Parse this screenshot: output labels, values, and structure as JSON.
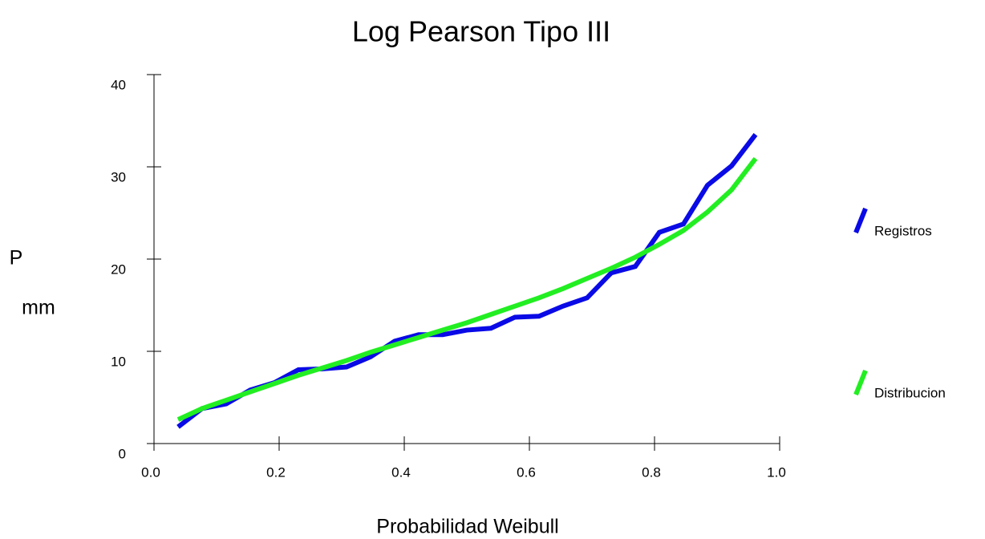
{
  "chart_data": {
    "type": "line",
    "title": "Log Pearson Tipo III",
    "xlabel": "Probabilidad Weibull",
    "ylabel": [
      "P",
      "mm"
    ],
    "x": [
      0.0385,
      0.0769,
      0.1154,
      0.1538,
      0.1923,
      0.2308,
      0.2692,
      0.3077,
      0.3462,
      0.3846,
      0.4231,
      0.4615,
      0.5,
      0.5385,
      0.5769,
      0.6154,
      0.6538,
      0.6923,
      0.7308,
      0.7692,
      0.8077,
      0.8462,
      0.8846,
      0.9231,
      0.9615
    ],
    "series": [
      {
        "name": "Registros",
        "color": "#0a0ae6",
        "values": [
          1.8,
          3.8,
          4.3,
          5.8,
          6.6,
          8.0,
          8.1,
          8.3,
          9.4,
          11.1,
          11.8,
          11.8,
          12.3,
          12.5,
          13.7,
          13.8,
          14.9,
          15.8,
          18.5,
          19.2,
          22.9,
          23.8,
          28.0,
          30.1,
          33.5
        ]
      },
      {
        "name": "Distribucion",
        "color": "#22ee22",
        "values": [
          2.6,
          3.8,
          4.7,
          5.6,
          6.5,
          7.4,
          8.2,
          9.0,
          9.9,
          10.7,
          11.5,
          12.3,
          13.1,
          14.0,
          14.9,
          15.8,
          16.8,
          17.9,
          19.0,
          20.2,
          21.6,
          23.1,
          25.1,
          27.5,
          30.9
        ]
      }
    ],
    "xlim": [
      0,
      1
    ],
    "xticks": [
      {
        "value": 0,
        "label": "0.0"
      },
      0.2,
      0.4,
      0.6,
      0.8,
      {
        "value": 1,
        "label": "1.0"
      }
    ],
    "ylim": [
      0,
      40
    ],
    "yticks": [
      0,
      10,
      20,
      30,
      40
    ],
    "legend": "right"
  }
}
